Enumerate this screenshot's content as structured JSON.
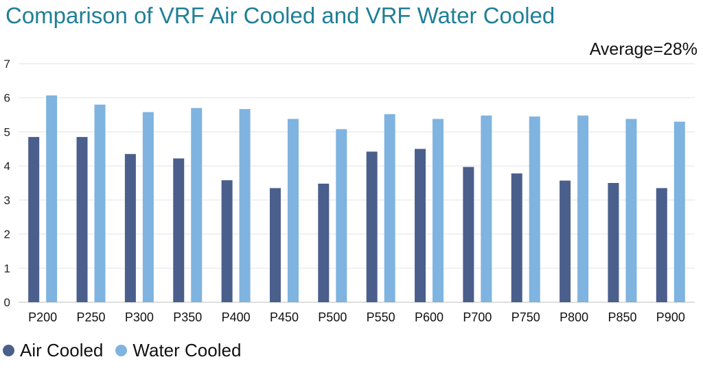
{
  "chart_data": {
    "type": "bar",
    "title": "Comparison of VRF Air Cooled and VRF Water Cooled",
    "annotation": "Average=28%",
    "categories": [
      "P200",
      "P250",
      "P300",
      "P350",
      "P400",
      "P450",
      "P500",
      "P550",
      "P600",
      "P700",
      "P750",
      "P800",
      "P850",
      "P900"
    ],
    "series": [
      {
        "name": "Air Cooled",
        "color": "#4a5f8c",
        "values": [
          4.85,
          4.85,
          4.35,
          4.22,
          3.58,
          3.35,
          3.48,
          4.42,
          4.5,
          3.97,
          3.78,
          3.57,
          3.5,
          3.35
        ]
      },
      {
        "name": "Water Cooled",
        "color": "#7fb3e0",
        "values": [
          6.07,
          5.8,
          5.58,
          5.7,
          5.67,
          5.38,
          5.08,
          5.52,
          5.38,
          5.48,
          5.45,
          5.48,
          5.38,
          5.3
        ]
      }
    ],
    "yticks": [
      "0",
      "1",
      "2",
      "3",
      "4",
      "5",
      "6",
      "7"
    ],
    "ylim": [
      0,
      7
    ],
    "grid": true,
    "legend": "bottom-left",
    "xlabel": "",
    "ylabel": ""
  }
}
